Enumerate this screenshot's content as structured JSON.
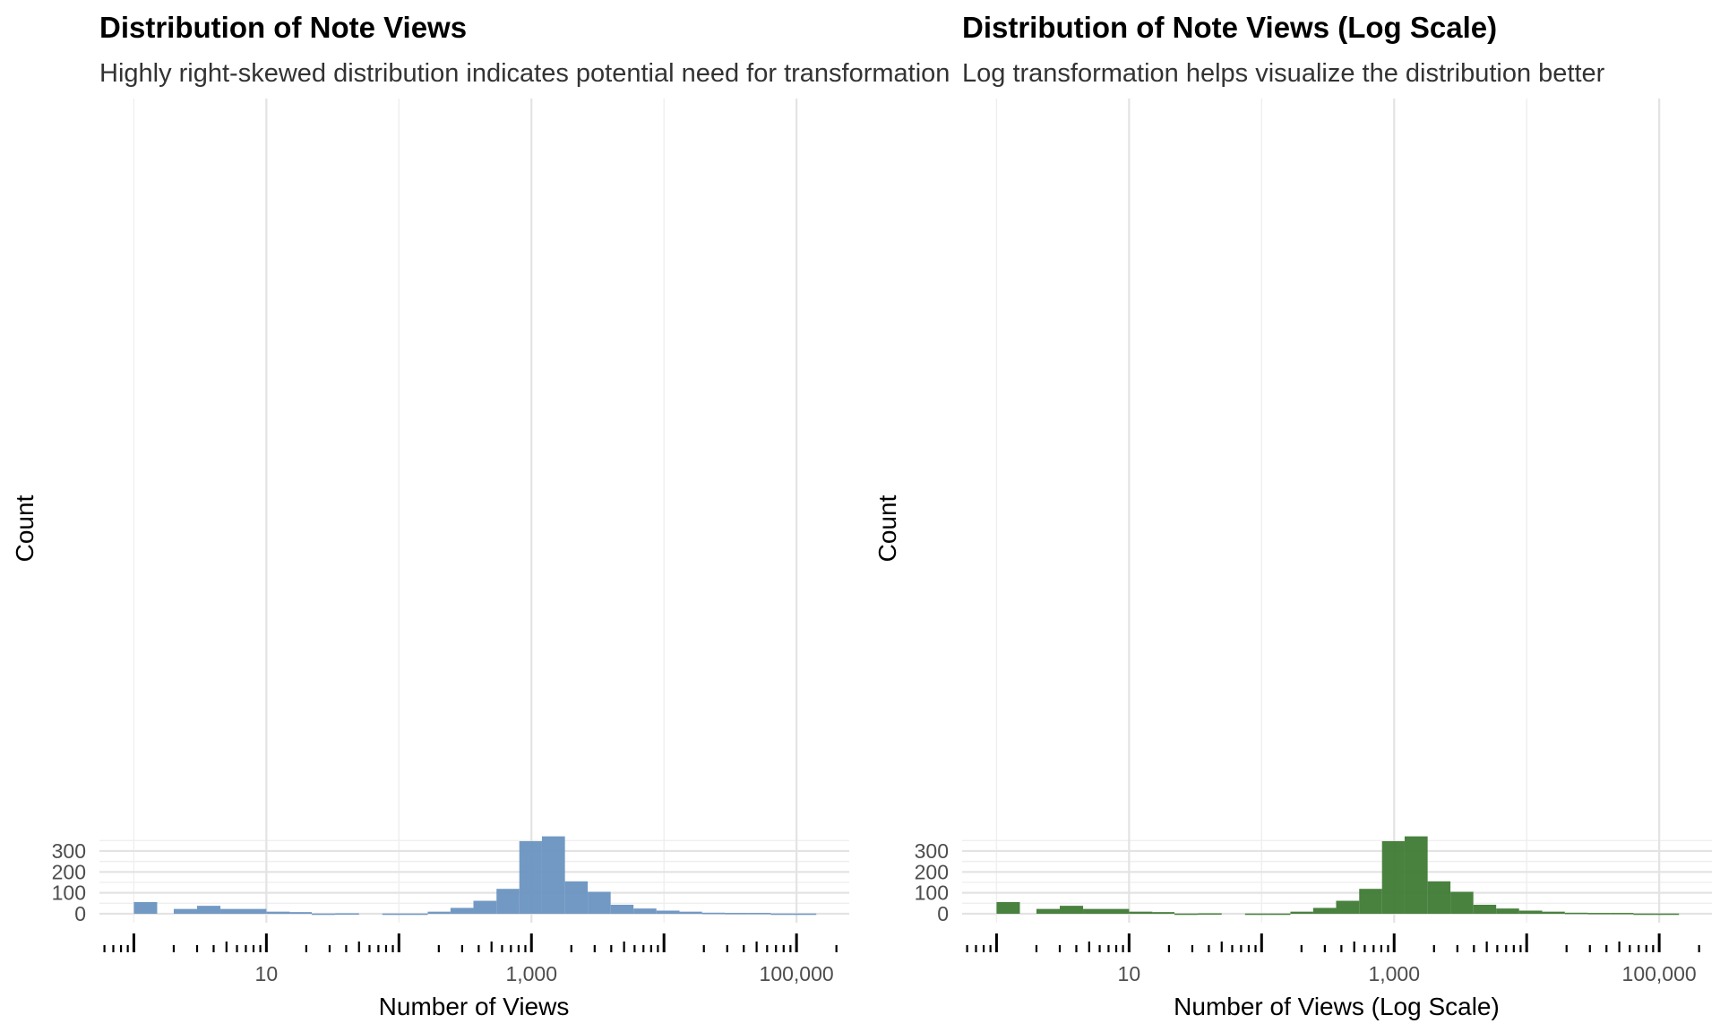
{
  "chart_data": [
    {
      "type": "bar",
      "title": "Distribution of Note Views",
      "subtitle": "Highly right-skewed distribution indicates potential need for transformation",
      "xlabel": "Number of Views",
      "ylabel": "Count",
      "x_scale": "log10",
      "xlim": [
        0.55,
        250000
      ],
      "ylim": [
        0,
        370
      ],
      "x_ticks": [
        10,
        1000,
        100000
      ],
      "x_tick_labels": [
        "10",
        "1,000",
        "100,000"
      ],
      "y_ticks": [
        0,
        100,
        200,
        300
      ],
      "y_tick_labels": [
        "0",
        "100",
        "200",
        "300"
      ],
      "grid": true,
      "legend": "none",
      "bar_color": "#6a93c0",
      "bins": [
        {
          "x_from": 1.0,
          "x_to": 1.5,
          "count": 56
        },
        {
          "x_from": 2.0,
          "x_to": 3.0,
          "count": 23
        },
        {
          "x_from": 3.0,
          "x_to": 4.5,
          "count": 38
        },
        {
          "x_from": 4.5,
          "x_to": 10.0,
          "count": 23
        },
        {
          "x_from": 10.0,
          "x_to": 15,
          "count": 10
        },
        {
          "x_from": 15,
          "x_to": 22,
          "count": 8
        },
        {
          "x_from": 22,
          "x_to": 33,
          "count": 1
        },
        {
          "x_from": 33,
          "x_to": 50,
          "count": 2
        },
        {
          "x_from": 50,
          "x_to": 75,
          "count": 0
        },
        {
          "x_from": 75,
          "x_to": 110,
          "count": 1
        },
        {
          "x_from": 110,
          "x_to": 165,
          "count": 1
        },
        {
          "x_from": 165,
          "x_to": 245,
          "count": 10
        },
        {
          "x_from": 245,
          "x_to": 365,
          "count": 28
        },
        {
          "x_from": 365,
          "x_to": 545,
          "count": 62
        },
        {
          "x_from": 545,
          "x_to": 810,
          "count": 119
        },
        {
          "x_from": 810,
          "x_to": 1200,
          "count": 347
        },
        {
          "x_from": 1200,
          "x_to": 1790,
          "count": 370
        },
        {
          "x_from": 1790,
          "x_to": 2660,
          "count": 155
        },
        {
          "x_from": 2660,
          "x_to": 3960,
          "count": 105
        },
        {
          "x_from": 3960,
          "x_to": 5890,
          "count": 43
        },
        {
          "x_from": 5890,
          "x_to": 8770,
          "count": 25
        },
        {
          "x_from": 8770,
          "x_to": 13100,
          "count": 15
        },
        {
          "x_from": 13100,
          "x_to": 19400,
          "count": 10
        },
        {
          "x_from": 19400,
          "x_to": 28900,
          "count": 5
        },
        {
          "x_from": 28900,
          "x_to": 43000,
          "count": 4
        },
        {
          "x_from": 43000,
          "x_to": 64000,
          "count": 4
        },
        {
          "x_from": 64000,
          "x_to": 95000,
          "count": 1
        },
        {
          "x_from": 95000,
          "x_to": 141000,
          "count": 1
        }
      ]
    },
    {
      "type": "bar",
      "title": "Distribution of Note Views (Log Scale)",
      "subtitle": "Log transformation helps visualize the distribution better",
      "xlabel": "Number of Views (Log Scale)",
      "ylabel": "Count",
      "x_scale": "log10",
      "xlim": [
        0.55,
        250000
      ],
      "ylim": [
        0,
        370
      ],
      "x_ticks": [
        10,
        1000,
        100000
      ],
      "x_tick_labels": [
        "10",
        "1,000",
        "100,000"
      ],
      "y_ticks": [
        0,
        100,
        200,
        300
      ],
      "y_tick_labels": [
        "0",
        "100",
        "200",
        "300"
      ],
      "grid": true,
      "legend": "none",
      "bar_color": "#3f7a35",
      "bins": [
        {
          "x_from": 1.0,
          "x_to": 1.5,
          "count": 56
        },
        {
          "x_from": 2.0,
          "x_to": 3.0,
          "count": 23
        },
        {
          "x_from": 3.0,
          "x_to": 4.5,
          "count": 38
        },
        {
          "x_from": 4.5,
          "x_to": 10.0,
          "count": 23
        },
        {
          "x_from": 10.0,
          "x_to": 15,
          "count": 10
        },
        {
          "x_from": 15,
          "x_to": 22,
          "count": 8
        },
        {
          "x_from": 22,
          "x_to": 33,
          "count": 1
        },
        {
          "x_from": 33,
          "x_to": 50,
          "count": 2
        },
        {
          "x_from": 50,
          "x_to": 75,
          "count": 0
        },
        {
          "x_from": 75,
          "x_to": 110,
          "count": 1
        },
        {
          "x_from": 110,
          "x_to": 165,
          "count": 1
        },
        {
          "x_from": 165,
          "x_to": 245,
          "count": 10
        },
        {
          "x_from": 245,
          "x_to": 365,
          "count": 28
        },
        {
          "x_from": 365,
          "x_to": 545,
          "count": 62
        },
        {
          "x_from": 545,
          "x_to": 810,
          "count": 119
        },
        {
          "x_from": 810,
          "x_to": 1200,
          "count": 347
        },
        {
          "x_from": 1200,
          "x_to": 1790,
          "count": 370
        },
        {
          "x_from": 1790,
          "x_to": 2660,
          "count": 155
        },
        {
          "x_from": 2660,
          "x_to": 3960,
          "count": 105
        },
        {
          "x_from": 3960,
          "x_to": 5890,
          "count": 43
        },
        {
          "x_from": 5890,
          "x_to": 8770,
          "count": 25
        },
        {
          "x_from": 8770,
          "x_to": 13100,
          "count": 15
        },
        {
          "x_from": 13100,
          "x_to": 19400,
          "count": 10
        },
        {
          "x_from": 19400,
          "x_to": 28900,
          "count": 5
        },
        {
          "x_from": 28900,
          "x_to": 43000,
          "count": 4
        },
        {
          "x_from": 43000,
          "x_to": 64000,
          "count": 4
        },
        {
          "x_from": 64000,
          "x_to": 95000,
          "count": 1
        },
        {
          "x_from": 95000,
          "x_to": 141000,
          "count": 1
        }
      ]
    }
  ]
}
